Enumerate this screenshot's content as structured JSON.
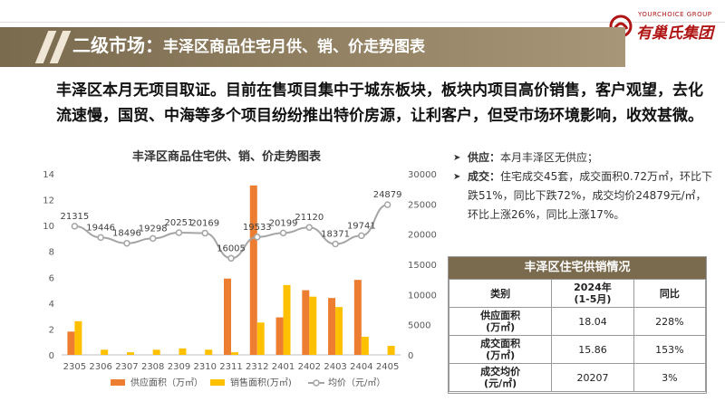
{
  "header": {
    "title_main": "二级市场：",
    "title_sub": "丰泽区商品住宅月供、销、价走势图表",
    "logo_en": "YOURCHOICE GROUP",
    "logo_cn": "有巢氏集团"
  },
  "summary": "丰泽区本月无项目取证。目前在售项目集中于城东板块，板块内项目高价销售，客户观望，去化流速慢，国贸、中海等多个项目纷纷推出特价房源，让利客户，但受市场环境影响，收效甚微。",
  "notes": [
    {
      "label": "供应：",
      "text": "本月丰泽区无供应；"
    },
    {
      "label": "成交：",
      "text": "住宅成交45套，成交面积0.72万㎡，环比下跌51%，同比下跌72%，成交均价24879元/㎡，环比上涨26%，同比上涨17%。"
    }
  ],
  "table": {
    "title": "丰泽区住宅供销情况",
    "headers": [
      "类别",
      "2024年\n(1-5月)",
      "同比"
    ],
    "rows": [
      {
        "label": "供应面积\n(万㎡)",
        "value": "18.04",
        "yoy": "228%"
      },
      {
        "label": "成交面积\n(万㎡)",
        "value": "15.86",
        "yoy": "153%"
      },
      {
        "label": "成交均价\n(元/㎡)",
        "value": "20207",
        "yoy": "3%"
      }
    ]
  },
  "chart_data": {
    "type": "bar",
    "title": "丰泽区商品住宅供、销、价走势图表",
    "categories": [
      "2305",
      "2306",
      "2307",
      "2308",
      "2309",
      "2310",
      "2311",
      "2312",
      "2401",
      "2402",
      "2403",
      "2404",
      "2405"
    ],
    "series": [
      {
        "name": "供应面积（万㎡）",
        "type": "bar",
        "axis": "left",
        "color": "#ed7d31",
        "values": [
          1.8,
          0,
          0,
          0,
          0,
          0,
          5.9,
          13.1,
          2.9,
          5.0,
          4.4,
          5.8,
          0
        ]
      },
      {
        "name": "销售面积(万㎡)",
        "type": "bar",
        "axis": "left",
        "color": "#ffc000",
        "values": [
          2.6,
          0.4,
          0.2,
          0.4,
          0.5,
          0.4,
          0.2,
          2.5,
          5.4,
          4.5,
          3.7,
          1.4,
          0.7
        ]
      },
      {
        "name": "均价（元/㎡）",
        "type": "line",
        "axis": "right",
        "color": "#a5a5a5",
        "values": [
          21315,
          19446,
          18496,
          19298,
          20251,
          20169,
          16005,
          19533,
          20199,
          21120,
          18371,
          19741,
          24879
        ],
        "labels": [
          "21315",
          "19446",
          "18496",
          "19298",
          "20251",
          "20169",
          "16005",
          "19533",
          "20199",
          "21120",
          "18371",
          "19741",
          "24879"
        ]
      }
    ],
    "y_left": {
      "min": 0,
      "max": 14,
      "ticks": [
        "0",
        "2",
        "4",
        "6",
        "8",
        "10",
        "12",
        "14"
      ]
    },
    "y_right": {
      "min": 0,
      "max": 30000,
      "ticks": [
        "0",
        "5000",
        "10000",
        "15000",
        "20000",
        "25000",
        "30000"
      ]
    },
    "grid": false,
    "legend_position": "bottom"
  }
}
